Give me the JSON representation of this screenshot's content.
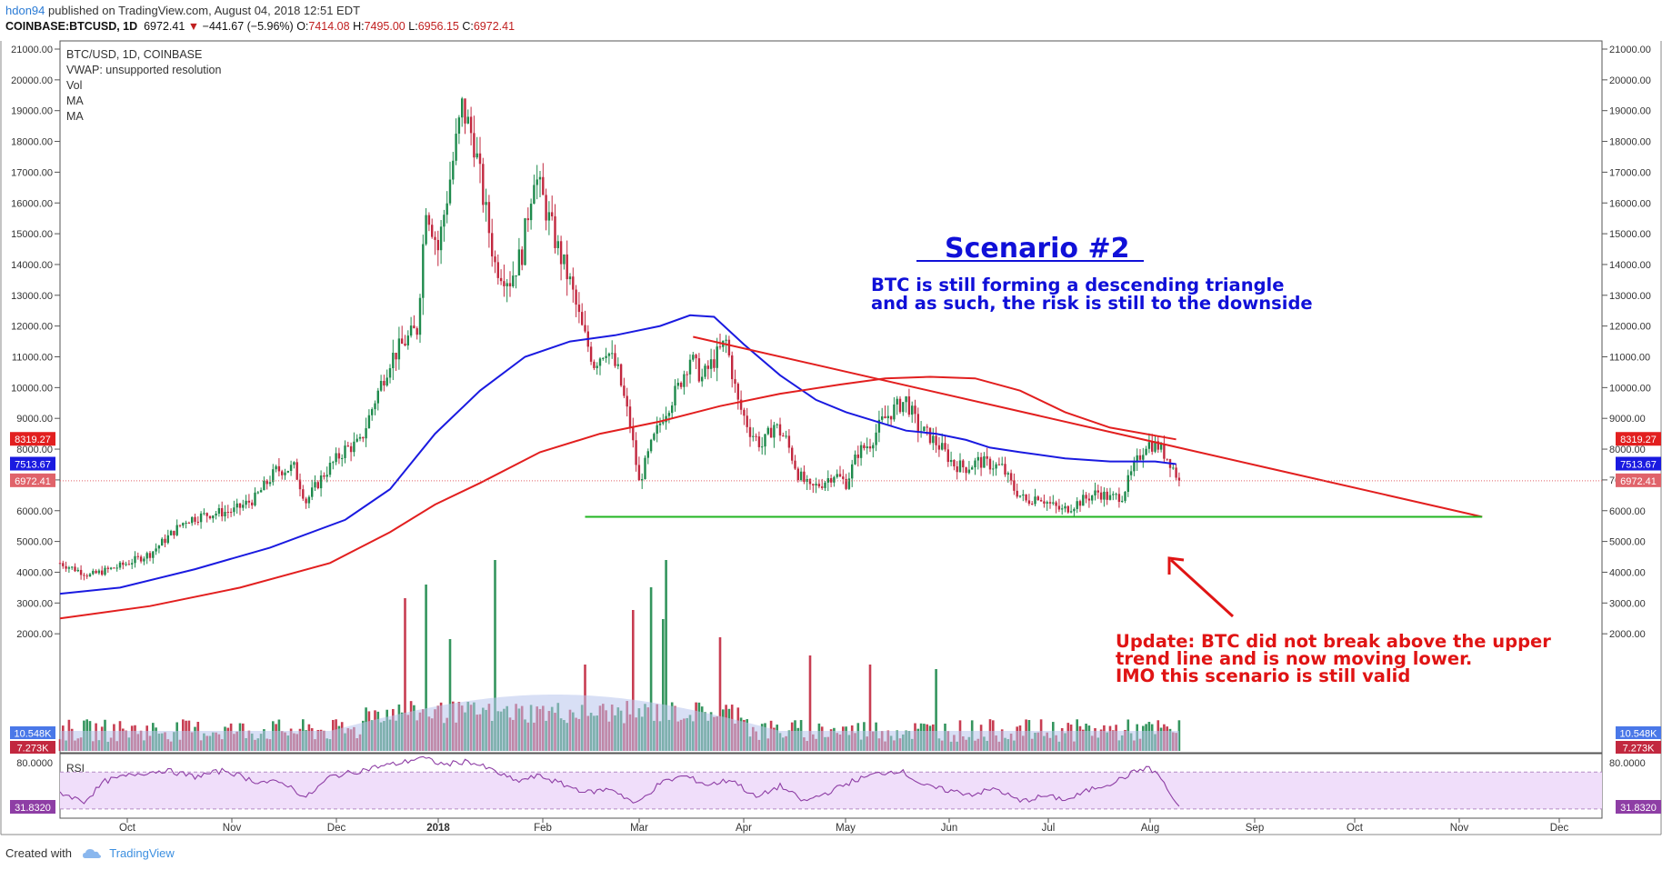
{
  "header": {
    "user": "hdon94",
    "published": " published on TradingView.com, August 04, 2018 12:51 EDT",
    "symbol": "COINBASE:BTCUSD, 1D",
    "last": "6972.41",
    "down_arrow": "▼",
    "change": "−441.67 (−5.96%)",
    "open_label": "O:",
    "open": "7414.08",
    "high_label": "H:",
    "high": "7495.00",
    "low_label": "L:",
    "low": "6956.15",
    "close_label": "C:",
    "close": "6972.41"
  },
  "legend": {
    "title": "BTC/USD, 1D, COINBASE",
    "vwap": "VWAP: unsupported resolution",
    "vol": "Vol",
    "ma1": "MA",
    "ma2": "MA"
  },
  "annotations": {
    "scenario_title": "Scenario #2",
    "scenario_line1": "BTC is still forming a descending triangle",
    "scenario_line2": "and as such, the risk is still to the downside",
    "update_line1": "Update: BTC did not break above the upper",
    "update_line2": "trend line and is now moving lower.",
    "update_line3": "IMO this scenario is still valid"
  },
  "footer": {
    "created_with": "Created with",
    "brand": "TradingView"
  },
  "colors": {
    "up": "#1e8a4c",
    "down": "#c2283f",
    "ma_fast": "#1a1ae0",
    "ma_slow": "#e21f1f",
    "trend": "#e21f1f",
    "support": "#21b521",
    "scenario_text": "#1010d8",
    "update_text": "#e01414",
    "rsi": "#8e3ea5",
    "rsi_band": "#f0defa",
    "volume_avg": "#b8c4ec"
  },
  "chart_data": {
    "type": "candlestick",
    "title": "BTC/USD, 1D, COINBASE",
    "x_ticks": [
      "Oct",
      "Nov",
      "Dec",
      "2018",
      "Feb",
      "Mar",
      "Apr",
      "May",
      "Jun",
      "Jul",
      "Aug",
      "Sep",
      "Oct",
      "Nov",
      "Dec"
    ],
    "y_ticks": [
      "21000.00",
      "20000.00",
      "19000.00",
      "18000.00",
      "17000.00",
      "16000.00",
      "15000.00",
      "14000.00",
      "13000.00",
      "12000.00",
      "11000.00",
      "10000.00",
      "9000.00",
      "8000.00",
      "7000.00",
      "6000.00",
      "5000.00",
      "4000.00",
      "3000.00",
      "2000.00"
    ],
    "ylim": [
      2000,
      21000
    ],
    "price_path": [
      [
        0,
        4300
      ],
      [
        10,
        3900
      ],
      [
        20,
        4200
      ],
      [
        30,
        4600
      ],
      [
        42,
        5700
      ],
      [
        50,
        5900
      ],
      [
        58,
        6000
      ],
      [
        65,
        6400
      ],
      [
        72,
        7300
      ],
      [
        78,
        7400
      ],
      [
        82,
        6300
      ],
      [
        88,
        7200
      ],
      [
        95,
        8000
      ],
      [
        100,
        8200
      ],
      [
        105,
        9600
      ],
      [
        110,
        10900
      ],
      [
        115,
        11500
      ],
      [
        119,
        11900
      ],
      [
        122,
        16000
      ],
      [
        126,
        14500
      ],
      [
        130,
        16800
      ],
      [
        134,
        19100
      ],
      [
        138,
        18000
      ],
      [
        141,
        16200
      ],
      [
        145,
        14000
      ],
      [
        150,
        13500
      ],
      [
        154,
        14400
      ],
      [
        158,
        17000
      ],
      [
        161,
        16100
      ],
      [
        166,
        14500
      ],
      [
        170,
        13400
      ],
      [
        174,
        11900
      ],
      [
        178,
        10800
      ],
      [
        182,
        11300
      ],
      [
        186,
        10500
      ],
      [
        190,
        8800
      ],
      [
        193,
        6900
      ],
      [
        197,
        8100
      ],
      [
        201,
        9100
      ],
      [
        206,
        10000
      ],
      [
        210,
        11000
      ],
      [
        214,
        10300
      ],
      [
        218,
        10900
      ],
      [
        222,
        11500
      ],
      [
        226,
        9500
      ],
      [
        230,
        8600
      ],
      [
        234,
        8100
      ],
      [
        238,
        8800
      ],
      [
        242,
        8300
      ],
      [
        246,
        7200
      ],
      [
        250,
        6700
      ],
      [
        254,
        6900
      ],
      [
        258,
        7200
      ],
      [
        262,
        6900
      ],
      [
        266,
        7900
      ],
      [
        270,
        8200
      ],
      [
        274,
        8900
      ],
      [
        278,
        9300
      ],
      [
        282,
        9600
      ],
      [
        286,
        8700
      ],
      [
        290,
        8400
      ],
      [
        294,
        8000
      ],
      [
        298,
        7500
      ],
      [
        302,
        7400
      ],
      [
        306,
        7600
      ],
      [
        310,
        7500
      ],
      [
        314,
        7400
      ],
      [
        318,
        6700
      ],
      [
        322,
        6300
      ],
      [
        326,
        6500
      ],
      [
        330,
        6200
      ],
      [
        334,
        6000
      ],
      [
        338,
        6200
      ],
      [
        342,
        6400
      ],
      [
        346,
        6600
      ],
      [
        350,
        6400
      ],
      [
        354,
        6500
      ],
      [
        358,
        7400
      ],
      [
        362,
        8200
      ],
      [
        366,
        8100
      ],
      [
        370,
        7600
      ],
      [
        373,
        6972
      ]
    ],
    "ma_fast": [
      [
        0,
        3300
      ],
      [
        20,
        3500
      ],
      [
        45,
        4100
      ],
      [
        70,
        4800
      ],
      [
        95,
        5700
      ],
      [
        110,
        6700
      ],
      [
        125,
        8500
      ],
      [
        140,
        9900
      ],
      [
        155,
        11000
      ],
      [
        170,
        11500
      ],
      [
        185,
        11700
      ],
      [
        200,
        12000
      ],
      [
        210,
        12350
      ],
      [
        218,
        12300
      ],
      [
        228,
        11400
      ],
      [
        240,
        10400
      ],
      [
        252,
        9600
      ],
      [
        262,
        9200
      ],
      [
        272,
        8900
      ],
      [
        282,
        8600
      ],
      [
        292,
        8500
      ],
      [
        302,
        8300
      ],
      [
        310,
        8050
      ],
      [
        320,
        7900
      ],
      [
        335,
        7700
      ],
      [
        350,
        7600
      ],
      [
        365,
        7600
      ],
      [
        372,
        7513
      ]
    ],
    "ma_slow": [
      [
        0,
        2500
      ],
      [
        30,
        2900
      ],
      [
        60,
        3500
      ],
      [
        90,
        4300
      ],
      [
        110,
        5300
      ],
      [
        125,
        6200
      ],
      [
        140,
        6900
      ],
      [
        160,
        7900
      ],
      [
        180,
        8500
      ],
      [
        200,
        8900
      ],
      [
        220,
        9400
      ],
      [
        240,
        9800
      ],
      [
        260,
        10100
      ],
      [
        275,
        10300
      ],
      [
        290,
        10350
      ],
      [
        305,
        10300
      ],
      [
        320,
        9900
      ],
      [
        335,
        9200
      ],
      [
        350,
        8700
      ],
      [
        372,
        8319
      ]
    ],
    "trend_line": {
      "from": [
        211,
        11650
      ],
      "to": [
        474,
        5800
      ]
    },
    "support": {
      "from": [
        175,
        5800
      ],
      "to": [
        474,
        5800
      ],
      "value": 5800
    },
    "last_price": 6972.41,
    "price_labels": [
      {
        "value": 8319.27,
        "label": "8319.27",
        "color": "#e21f1f"
      },
      {
        "value": 7513.67,
        "label": "7513.67",
        "color": "#1a1ae0"
      },
      {
        "value": 6972.41,
        "label": "6972.41",
        "color": "#e0636a"
      }
    ],
    "volume_labels": [
      {
        "label": "10.548K",
        "color": "#4a78e8"
      },
      {
        "label": "7.273K",
        "color": "#c2283f"
      }
    ],
    "rsi": {
      "label": "RSI",
      "value": "31.8320",
      "ticks": [
        "80.0000"
      ],
      "band": [
        30,
        70
      ],
      "ylim": [
        20,
        90
      ],
      "path": [
        [
          0,
          48
        ],
        [
          8,
          38
        ],
        [
          15,
          60
        ],
        [
          25,
          68
        ],
        [
          35,
          72
        ],
        [
          45,
          65
        ],
        [
          55,
          72
        ],
        [
          65,
          60
        ],
        [
          75,
          58
        ],
        [
          82,
          42
        ],
        [
          90,
          65
        ],
        [
          98,
          70
        ],
        [
          106,
          76
        ],
        [
          114,
          80
        ],
        [
          120,
          86
        ],
        [
          128,
          78
        ],
        [
          136,
          82
        ],
        [
          144,
          72
        ],
        [
          152,
          60
        ],
        [
          160,
          66
        ],
        [
          168,
          56
        ],
        [
          176,
          48
        ],
        [
          184,
          52
        ],
        [
          192,
          35
        ],
        [
          200,
          58
        ],
        [
          208,
          66
        ],
        [
          216,
          56
        ],
        [
          224,
          62
        ],
        [
          232,
          42
        ],
        [
          240,
          55
        ],
        [
          248,
          38
        ],
        [
          256,
          48
        ],
        [
          264,
          60
        ],
        [
          272,
          68
        ],
        [
          280,
          72
        ],
        [
          288,
          55
        ],
        [
          296,
          50
        ],
        [
          304,
          46
        ],
        [
          312,
          52
        ],
        [
          320,
          38
        ],
        [
          328,
          44
        ],
        [
          336,
          40
        ],
        [
          344,
          52
        ],
        [
          352,
          60
        ],
        [
          358,
          70
        ],
        [
          362,
          75
        ],
        [
          366,
          68
        ],
        [
          370,
          46
        ],
        [
          373,
          32
        ]
      ]
    }
  }
}
